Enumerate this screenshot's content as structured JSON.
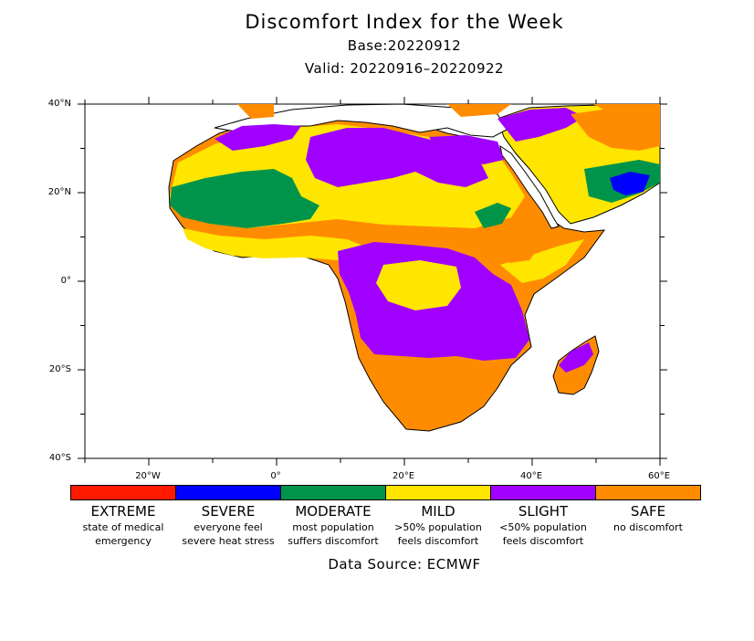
{
  "header": {
    "title": "Discomfort Index for the Week",
    "base": "Base:20220912",
    "valid": "Valid: 20220916–20220922"
  },
  "axes": {
    "y_ticks": [
      "40°N",
      "20°N",
      "0°",
      "20°S",
      "40°S"
    ],
    "x_ticks": [
      "20°W",
      "0°",
      "20°E",
      "40°E",
      "60°E"
    ],
    "lon_range": [
      -30,
      60
    ],
    "lat_range": [
      -40,
      40
    ]
  },
  "legend": [
    {
      "label": "EXTREME",
      "desc1": "state of medical",
      "desc2": "emergency",
      "color": "#ff1a00"
    },
    {
      "label": "SEVERE",
      "desc1": "everyone feel",
      "desc2": "severe heat stress",
      "color": "#0000ff"
    },
    {
      "label": "MODERATE",
      "desc1": "most population",
      "desc2": "suffers discomfort",
      "color": "#00944a"
    },
    {
      "label": "MILD",
      "desc1": ">50% population",
      "desc2": "feels discomfort",
      "color": "#ffe600"
    },
    {
      "label": "SLIGHT",
      "desc1": "<50% population",
      "desc2": "feels discomfort",
      "color": "#a000ff"
    },
    {
      "label": "SAFE",
      "desc1": "no discomfort",
      "desc2": "",
      "color": "#ff8c00"
    }
  ],
  "footer": {
    "source": "Data Source: ECMWF"
  }
}
